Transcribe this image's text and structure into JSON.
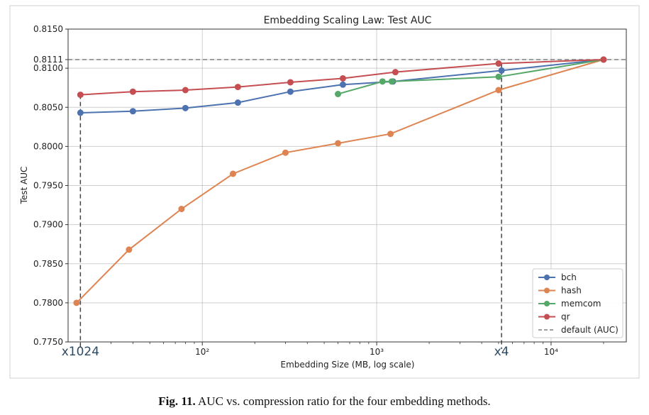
{
  "caption": {
    "label": "Fig. 11.",
    "text": "AUC vs. compression ratio for the four embedding methods."
  },
  "chart_data": {
    "type": "line",
    "title": "Embedding Scaling Law: Test AUC",
    "xlabel": "Embedding Size (MB, log scale)",
    "ylabel": "Test AUC",
    "xscale": "log",
    "xlim": [
      17,
      27000
    ],
    "ylim": [
      0.775,
      0.815
    ],
    "grid": true,
    "legend_position": "lower right",
    "x_tick_labels": [
      "10²",
      "10³",
      "10⁴"
    ],
    "x_ticks": [
      100,
      1000,
      10000
    ],
    "y_ticks": [
      0.775,
      0.78,
      0.785,
      0.79,
      0.795,
      0.8,
      0.805,
      0.81,
      0.8111,
      0.815
    ],
    "y_tick_labels": [
      "0.7750",
      "0.7800",
      "0.7850",
      "0.7900",
      "0.7950",
      "0.8000",
      "0.8050",
      "0.8100",
      "0.8111",
      "0.8150"
    ],
    "series": [
      {
        "name": "bch",
        "color": "#4c72b0",
        "x": [
          20,
          40,
          80,
          160,
          320,
          640,
          1240,
          5200,
          20000
        ],
        "y": [
          0.8043,
          0.8045,
          0.8049,
          0.8056,
          0.807,
          0.8079,
          0.8083,
          0.8097,
          0.8111
        ]
      },
      {
        "name": "hash",
        "color": "#dd8452",
        "x": [
          19,
          38,
          76,
          150,
          300,
          600,
          1200,
          5000,
          20000
        ],
        "y": [
          0.78,
          0.7868,
          0.792,
          0.7965,
          0.7992,
          0.8004,
          0.8016,
          0.8072,
          0.8111
        ]
      },
      {
        "name": "memcom",
        "color": "#55a868",
        "x": [
          600,
          1080,
          1220,
          5000,
          20000
        ],
        "y": [
          0.8067,
          0.8083,
          0.8083,
          0.8089,
          0.8111
        ]
      },
      {
        "name": "qr",
        "color": "#c44e52",
        "x": [
          20,
          40,
          80,
          160,
          320,
          640,
          1280,
          5000,
          20000
        ],
        "y": [
          0.8066,
          0.807,
          0.8072,
          0.8076,
          0.8082,
          0.8087,
          0.8095,
          0.8106,
          0.8111
        ]
      }
    ],
    "reference_line": {
      "label": "default (AUC)",
      "y": 0.8111,
      "color": "#7f7f7f"
    },
    "annotations": [
      {
        "text": "x1024",
        "x": 20,
        "y": 0.8066
      },
      {
        "text": "x4",
        "x": 5200,
        "y": 0.8106
      }
    ]
  }
}
